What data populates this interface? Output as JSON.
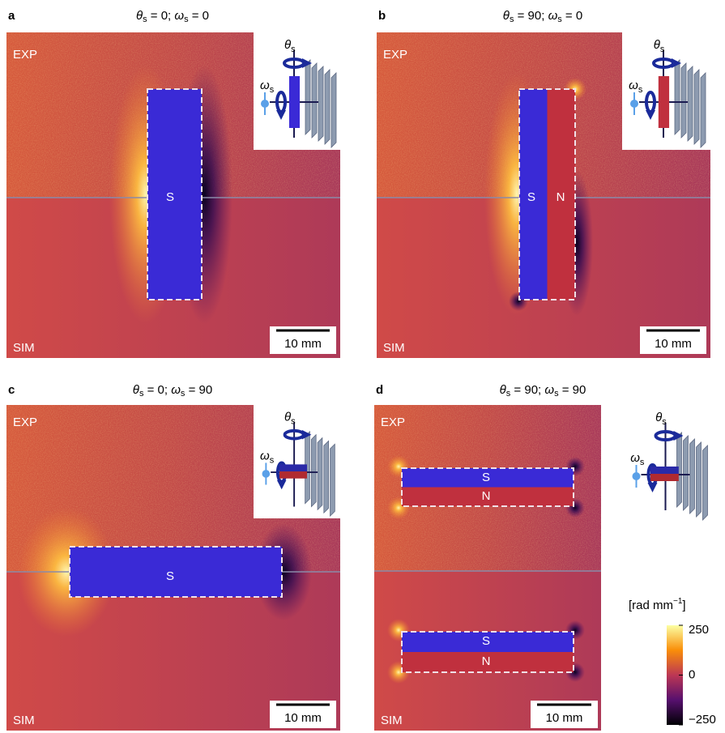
{
  "panels": [
    {
      "letter": "a",
      "title": {
        "theta": "θ",
        "theta_sub": "s",
        "eq1": " = 0; ",
        "omega": "ω",
        "omega_sub": "s",
        "eq2": " = 0"
      },
      "exp": "EXP",
      "sim": "SIM",
      "poles": [
        "S"
      ],
      "scale_bar": "10 mm",
      "inset": {
        "theta": "θ",
        "theta_sub": "s",
        "omega": "ω",
        "omega_sub": "s"
      }
    },
    {
      "letter": "b",
      "title": {
        "theta": "θ",
        "theta_sub": "s",
        "eq1": " = 90; ",
        "omega": "ω",
        "omega_sub": "s",
        "eq2": " = 0"
      },
      "exp": "EXP",
      "sim": "SIM",
      "poles": [
        "S",
        "N"
      ],
      "scale_bar": "10 mm",
      "inset": {
        "theta": "θ",
        "theta_sub": "s",
        "omega": "ω",
        "omega_sub": "s"
      }
    },
    {
      "letter": "c",
      "title": {
        "theta": "θ",
        "theta_sub": "s",
        "eq1": " = 0; ",
        "omega": "ω",
        "omega_sub": "s",
        "eq2": " = 90"
      },
      "exp": "EXP",
      "sim": "SIM",
      "poles": [
        "S"
      ],
      "scale_bar": "10 mm",
      "inset": {
        "theta": "θ",
        "theta_sub": "s",
        "omega": "ω",
        "omega_sub": "s"
      }
    },
    {
      "letter": "d",
      "title": {
        "theta": "θ",
        "theta_sub": "s",
        "eq1": " = 90; ",
        "omega": "ω",
        "omega_sub": "s",
        "eq2": " = 90"
      },
      "exp": "EXP",
      "sim": "SIM",
      "poles": [
        "S",
        "N",
        "S",
        "N"
      ],
      "scale_bar": "10 mm",
      "inset": {
        "theta": "θ",
        "theta_sub": "s",
        "omega": "ω",
        "omega_sub": "s"
      }
    }
  ],
  "colorbar": {
    "label": "[rad mm",
    "label_sup": "−1",
    "label_end": "]",
    "lim": [
      -250,
      250
    ],
    "ticks": [
      250,
      0,
      {
        "value": -250,
        "label": "−250"
      }
    ]
  }
}
